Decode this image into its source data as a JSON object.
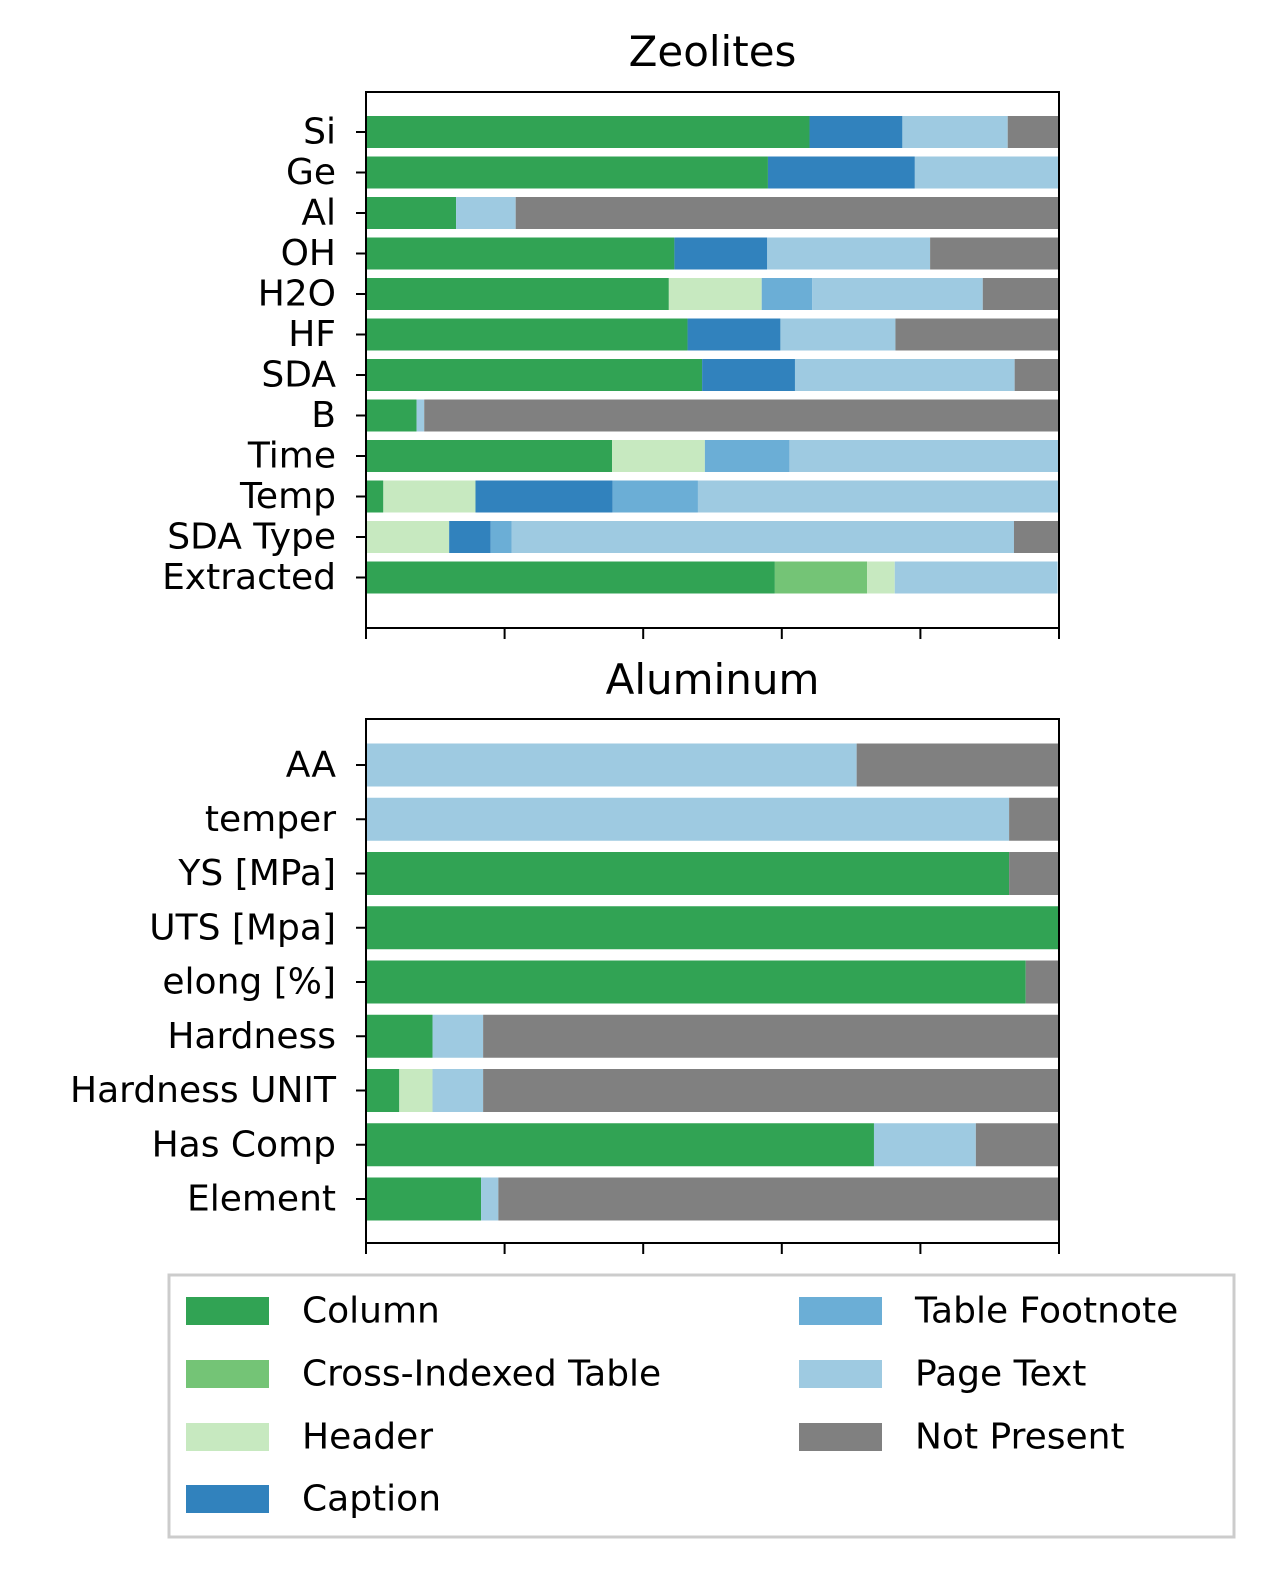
{
  "chart_data": [
    {
      "type": "bar",
      "orientation": "horizontal",
      "stacked": true,
      "title": "Zeolites",
      "xlim": [
        0,
        1
      ],
      "x_ticklabels_visible": false,
      "categories": [
        "Si",
        "Ge",
        "Al",
        "OH",
        "H2O",
        "HF",
        "SDA",
        "B",
        "Time",
        "Temp",
        "SDA Type",
        "Extracted"
      ],
      "series": [
        {
          "name": "Column",
          "color": "#31a354",
          "values": [
            0.64,
            0.58,
            0.13,
            0.445,
            0.437,
            0.464,
            0.485,
            0.073,
            0.355,
            0.025,
            0.0,
            0.59
          ]
        },
        {
          "name": "Cross-Indexed Table",
          "color": "#74c476",
          "values": [
            0,
            0,
            0,
            0,
            0,
            0,
            0,
            0,
            0,
            0,
            0,
            0.133
          ]
        },
        {
          "name": "Header",
          "color": "#c7e9c0",
          "values": [
            0,
            0,
            0,
            0,
            0.134,
            0,
            0,
            0,
            0.134,
            0.133,
            0.12,
            0.04
          ]
        },
        {
          "name": "Caption",
          "color": "#3182bd",
          "values": [
            0.134,
            0.212,
            0,
            0.134,
            0,
            0.134,
            0.134,
            0,
            0,
            0.198,
            0.06,
            0
          ]
        },
        {
          "name": "Table Footnote",
          "color": "#6baed6",
          "values": [
            0,
            0,
            0,
            0,
            0.073,
            0,
            0,
            0,
            0.122,
            0.123,
            0.03,
            0
          ]
        },
        {
          "name": "Page Text",
          "color": "#9ecae1",
          "values": [
            0.152,
            0.208,
            0.086,
            0.235,
            0.246,
            0.166,
            0.317,
            0.011,
            0.389,
            0.52,
            0.725,
            0.235
          ]
        },
        {
          "name": "Not Present",
          "color": "#808080",
          "values": [
            0.074,
            0,
            0.784,
            0.186,
            0.11,
            0.236,
            0.064,
            0.916,
            0,
            0,
            0.065,
            0
          ]
        }
      ]
    },
    {
      "type": "bar",
      "orientation": "horizontal",
      "stacked": true,
      "title": "Aluminum",
      "xlim": [
        0,
        1
      ],
      "x_ticklabels_visible": false,
      "categories": [
        "AA",
        "temper",
        "YS [MPa]",
        "UTS  [Mpa]",
        "elong [%]",
        "Hardness",
        "Hardness UNIT",
        "Has Comp",
        "Element"
      ],
      "series": [
        {
          "name": "Column",
          "color": "#31a354",
          "values": [
            0,
            0,
            0.928,
            1.0,
            0.952,
            0.096,
            0.048,
            0.733,
            0.166
          ]
        },
        {
          "name": "Cross-Indexed Table",
          "color": "#74c476",
          "values": [
            0,
            0,
            0,
            0,
            0,
            0,
            0,
            0,
            0
          ]
        },
        {
          "name": "Header",
          "color": "#c7e9c0",
          "values": [
            0,
            0,
            0,
            0,
            0,
            0,
            0.048,
            0,
            0
          ]
        },
        {
          "name": "Caption",
          "color": "#3182bd",
          "values": [
            0,
            0,
            0,
            0,
            0,
            0,
            0,
            0,
            0
          ]
        },
        {
          "name": "Table Footnote",
          "color": "#6baed6",
          "values": [
            0,
            0,
            0,
            0,
            0,
            0,
            0,
            0,
            0
          ]
        },
        {
          "name": "Page Text",
          "color": "#9ecae1",
          "values": [
            0.708,
            0.928,
            0,
            0,
            0,
            0.073,
            0.073,
            0.147,
            0.025
          ]
        },
        {
          "name": "Not Present",
          "color": "#808080",
          "values": [
            0.292,
            0.072,
            0.072,
            0,
            0.048,
            0.831,
            0.831,
            0.12,
            0.809
          ]
        }
      ]
    }
  ],
  "legend": {
    "placement": "bottom",
    "entries": [
      {
        "label": "Column",
        "color": "#31a354"
      },
      {
        "label": "Cross-Indexed Table",
        "color": "#74c476"
      },
      {
        "label": "Header",
        "color": "#c7e9c0"
      },
      {
        "label": "Caption",
        "color": "#3182bd"
      },
      {
        "label": "Table Footnote",
        "color": "#6baed6"
      },
      {
        "label": "Page Text",
        "color": "#9ecae1"
      },
      {
        "label": "Not Present",
        "color": "#808080"
      }
    ]
  }
}
